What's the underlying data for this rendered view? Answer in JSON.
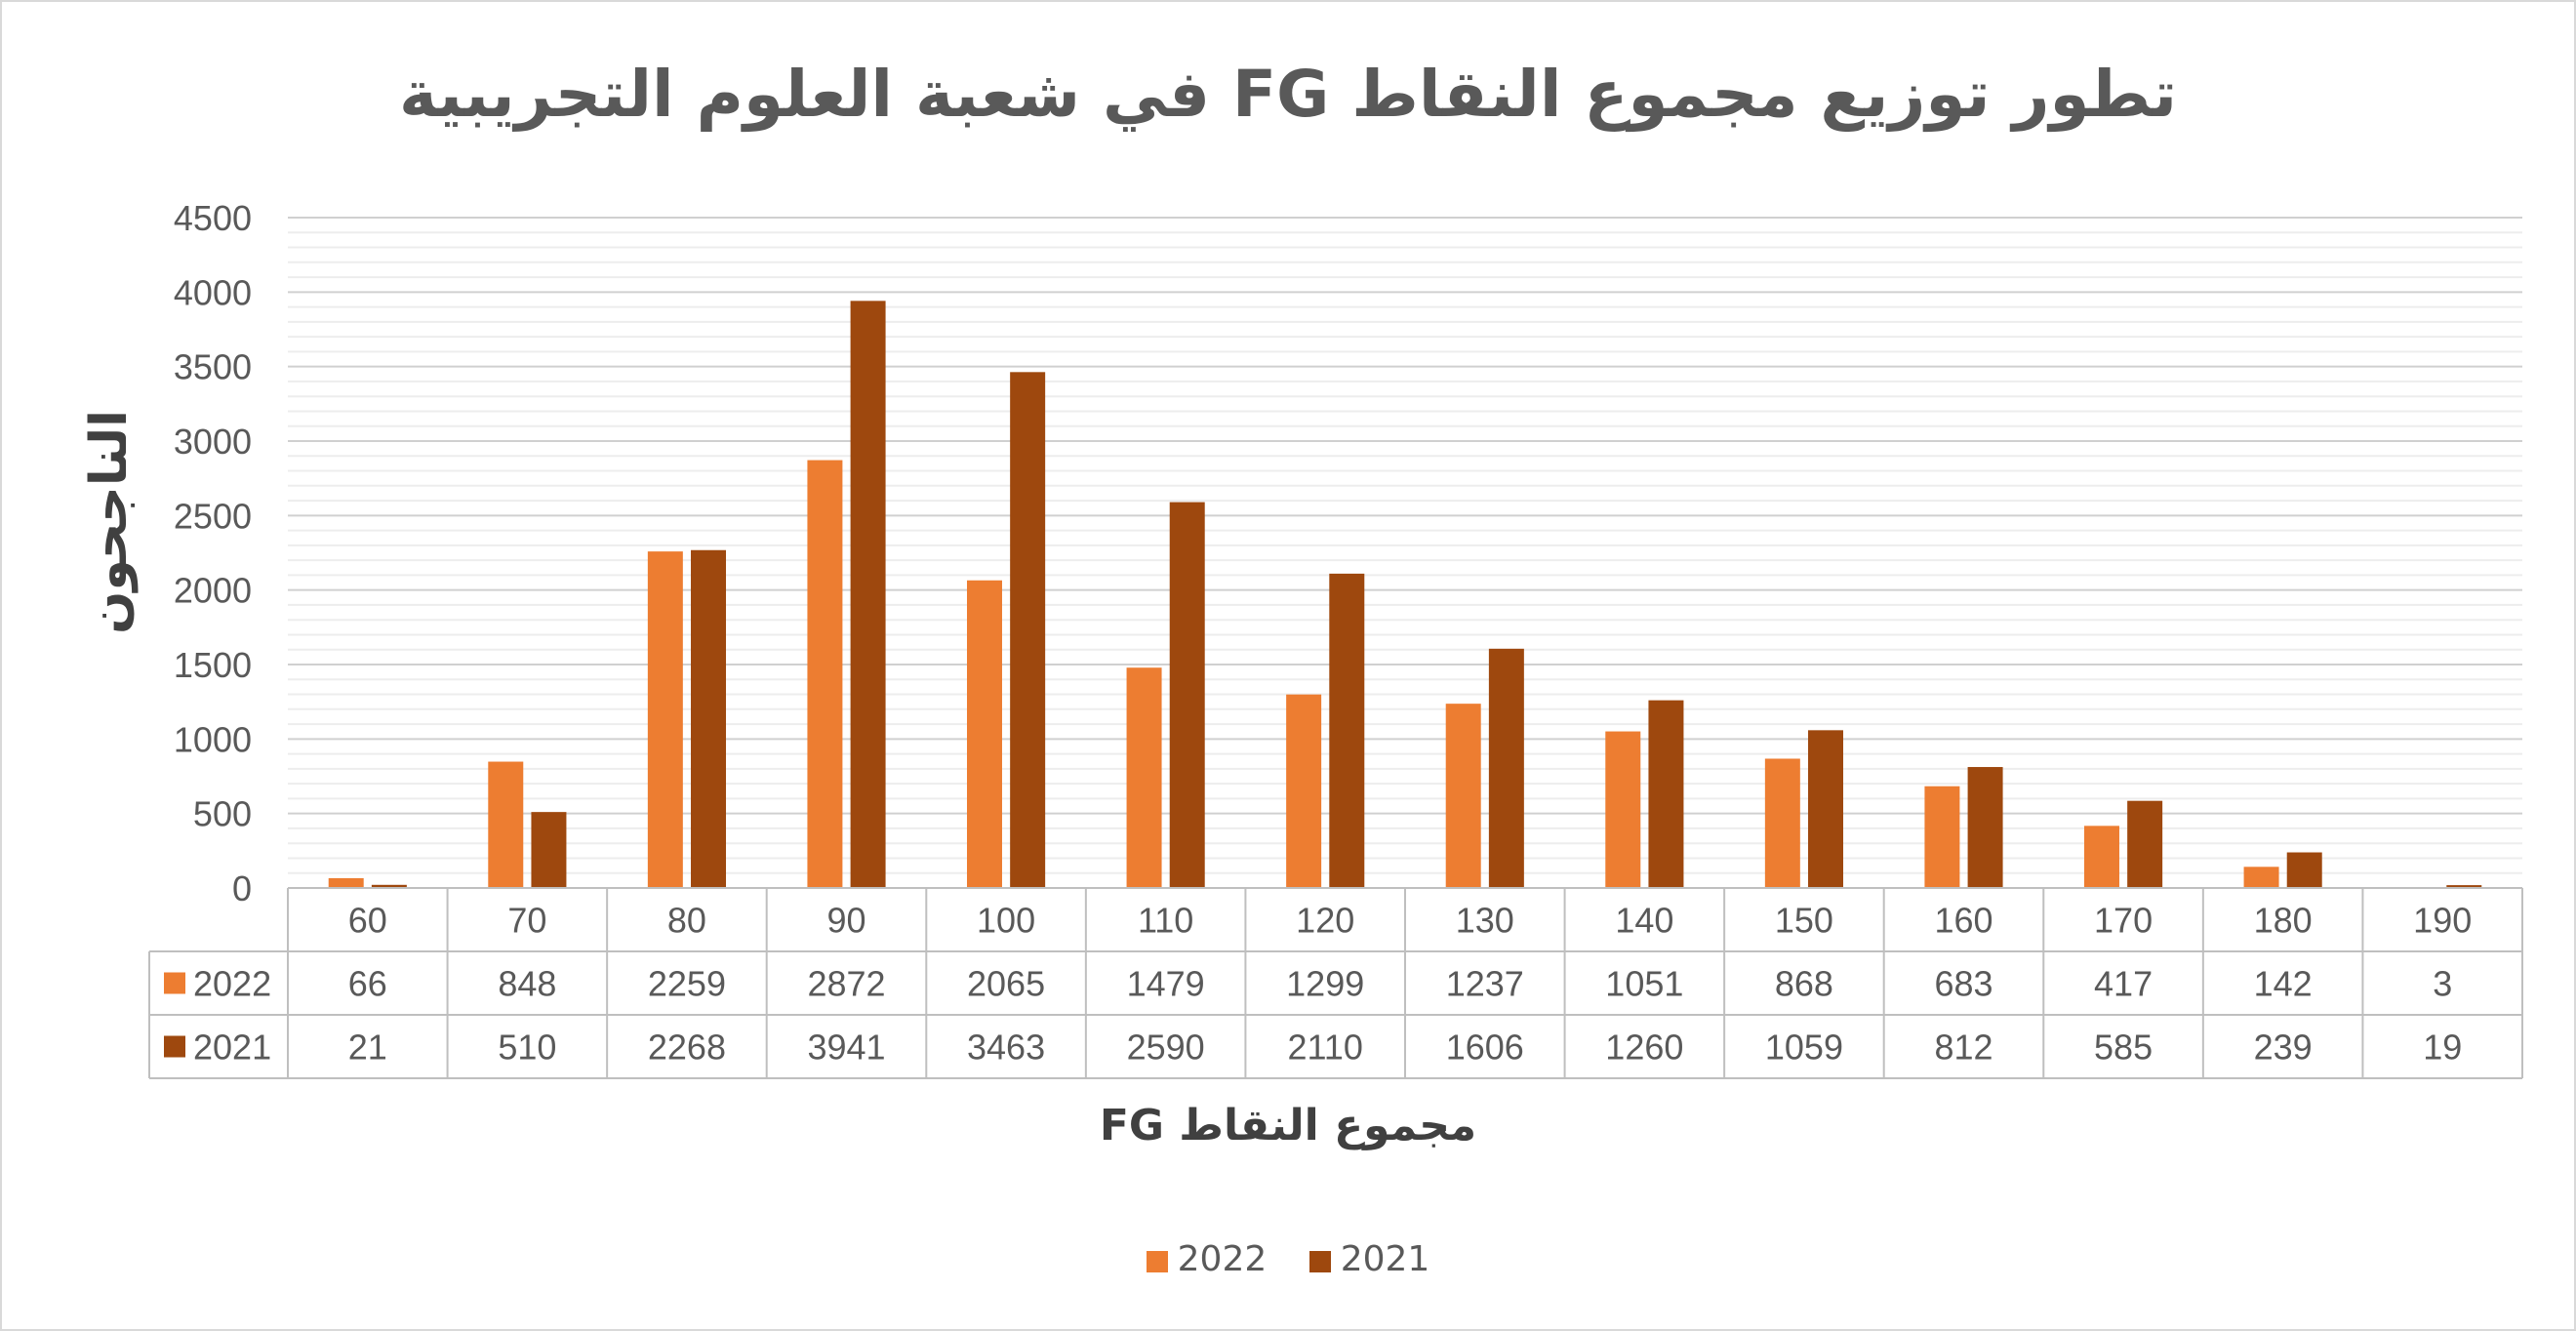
{
  "chart_data": {
    "type": "bar",
    "title": "تطور توزيع مجموع النقاط  FG  في شعبة العلوم التجريبية",
    "xlabel": "مجموع النقاط FG",
    "ylabel": "الناجحون",
    "categories": [
      "60",
      "70",
      "80",
      "90",
      "100",
      "110",
      "120",
      "130",
      "140",
      "150",
      "160",
      "170",
      "180",
      "190"
    ],
    "series": [
      {
        "name": "2022",
        "color": "#ed7d31",
        "values": [
          66,
          848,
          2259,
          2872,
          2065,
          1479,
          1299,
          1237,
          1051,
          868,
          683,
          417,
          142,
          3
        ]
      },
      {
        "name": "2021",
        "color": "#9e480e",
        "values": [
          21,
          510,
          2268,
          3941,
          3463,
          2590,
          2110,
          1606,
          1260,
          1059,
          812,
          585,
          239,
          19
        ]
      }
    ],
    "ylim": [
      0,
      4500
    ],
    "y_ticks": [
      "0",
      "500",
      "1000",
      "1500",
      "2000",
      "2500",
      "3000",
      "3500",
      "4000",
      "4500"
    ],
    "grid": true,
    "data_table": true,
    "legend_position": "bottom"
  }
}
